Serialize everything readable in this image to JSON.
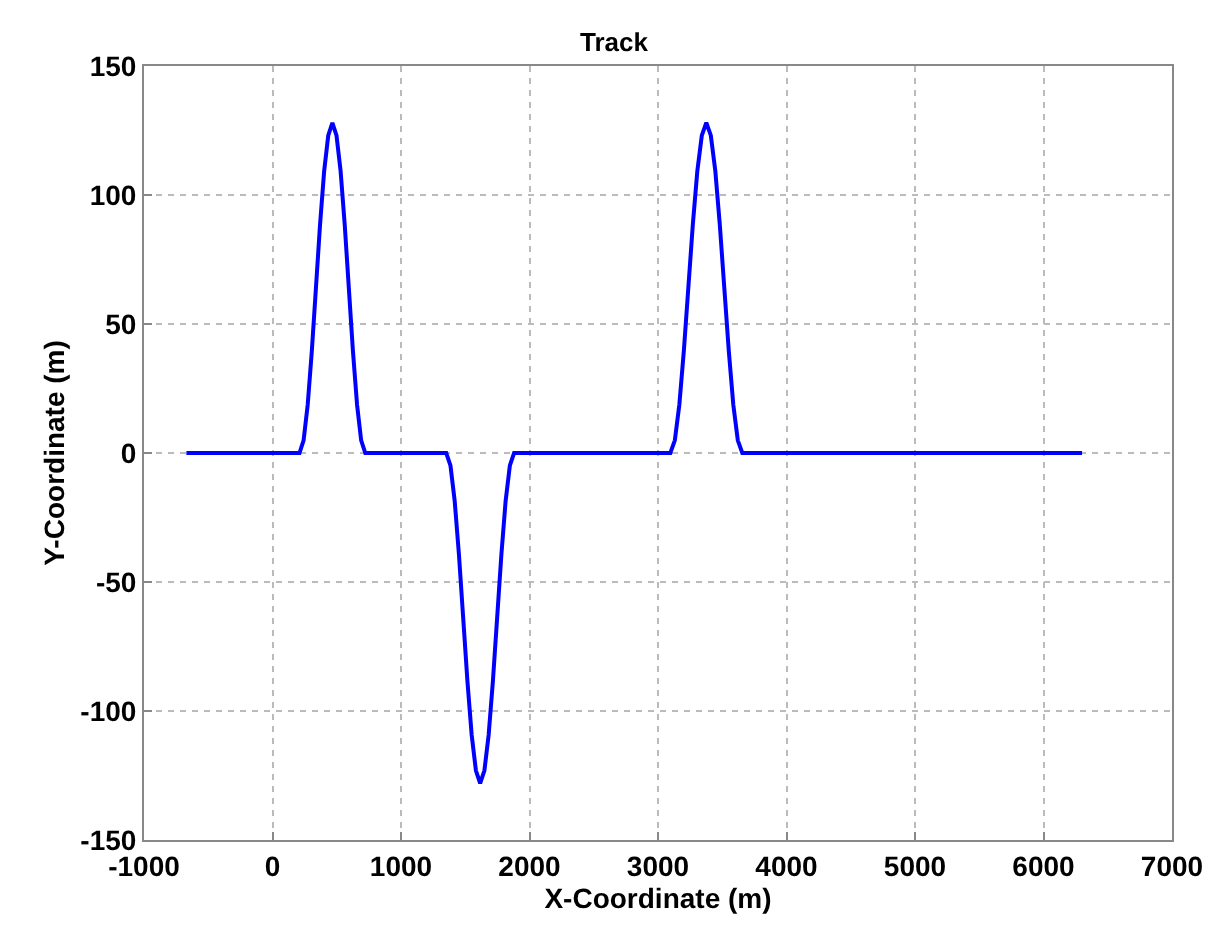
{
  "chart_data": {
    "type": "line",
    "title": "Track",
    "xlabel": "X-Coordinate (m)",
    "ylabel": "Y-Coordinate (m)",
    "series": [
      {
        "color": "#0000ff",
        "x": [
          -670,
          210,
          242,
          274,
          306,
          338,
          370,
          402,
          434,
          466,
          498,
          530,
          562,
          594,
          626,
          658,
          690,
          722,
          1352,
          1385,
          1418,
          1451,
          1484,
          1517,
          1550,
          1583,
          1616,
          1649,
          1682,
          1715,
          1748,
          1781,
          1814,
          1847,
          1880,
          3096,
          3131,
          3166,
          3201,
          3236,
          3271,
          3306,
          3341,
          3376,
          3411,
          3446,
          3481,
          3516,
          3551,
          3586,
          3621,
          3656,
          6300
        ],
        "values": [
          0,
          0,
          4.9,
          18.7,
          39.5,
          64,
          88.5,
          109.3,
          123.1,
          128,
          123.1,
          109.3,
          88.5,
          64,
          39.5,
          18.7,
          4.9,
          0,
          0,
          -4.9,
          -18.7,
          -39.5,
          -64,
          -88.5,
          -109.3,
          -123.1,
          -128,
          -123.1,
          -109.3,
          -88.5,
          -64,
          -39.5,
          -18.7,
          -4.9,
          0,
          0,
          4.9,
          18.7,
          39.5,
          64,
          88.5,
          109.3,
          123.1,
          128,
          123.1,
          109.3,
          88.5,
          64,
          39.5,
          18.7,
          4.9,
          0,
          0
        ]
      }
    ],
    "xlim": [
      -1000,
      7000
    ],
    "xticks": [
      -1000,
      0,
      1000,
      2000,
      3000,
      4000,
      5000,
      6000,
      7000
    ],
    "ylim": [
      -150,
      150
    ],
    "yticks": [
      -150,
      -100,
      -50,
      0,
      50,
      100,
      150
    ],
    "grid": true,
    "marker": "none",
    "line_style": "solid"
  }
}
